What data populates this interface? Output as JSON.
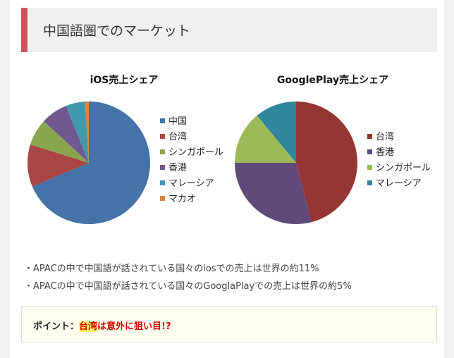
{
  "section": {
    "title": "中国語圏でのマーケット"
  },
  "chart_data": [
    {
      "type": "pie",
      "title": "iOS売上シェア",
      "legend_position": "right",
      "categories": [
        "中国",
        "台湾",
        "シンガポール",
        "香港",
        "マレーシア",
        "マカオ"
      ],
      "values": [
        68,
        11,
        7,
        7,
        5,
        1
      ],
      "colors": [
        "#4572a7",
        "#aa4643",
        "#89a54e",
        "#71588f",
        "#4198af",
        "#db843d"
      ]
    },
    {
      "type": "pie",
      "title": "GooglePlay売上シェア",
      "legend_position": "right",
      "categories": [
        "台湾",
        "香港",
        "シンガポール",
        "マレーシア"
      ],
      "values": [
        46,
        29,
        14,
        11
      ],
      "colors": [
        "#943634",
        "#604a7b",
        "#9bbb59",
        "#31859c"
      ]
    }
  ],
  "notes": [
    "・APACの中で中国語が話されている国々のiosでの売上は世界の約11%",
    "・APACの中で中国語が話されている国々のGooglaPlayでの売上は世界の約5%"
  ],
  "point": {
    "label": "ポイント：",
    "highlight": "台湾",
    "text": "は意外に狙い目!?"
  }
}
